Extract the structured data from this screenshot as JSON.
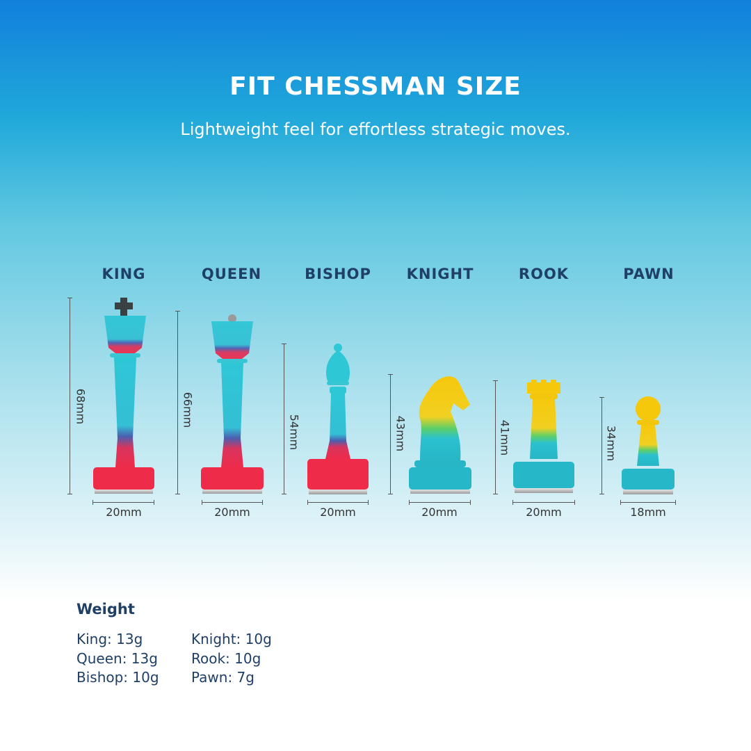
{
  "header": {
    "title": "FIT CHESSMAN SIZE",
    "subtitle": "Lightweight feel for effortless strategic moves."
  },
  "pieces": [
    {
      "name": "KING",
      "height": "68mm",
      "width": "20mm"
    },
    {
      "name": "QUEEN",
      "height": "66mm",
      "width": "20mm"
    },
    {
      "name": "BISHOP",
      "height": "54mm",
      "width": "20mm"
    },
    {
      "name": "KNIGHT",
      "height": "43mm",
      "width": "20mm"
    },
    {
      "name": "ROOK",
      "height": "41mm",
      "width": "20mm"
    },
    {
      "name": "PAWN",
      "height": "34mm",
      "width": "18mm"
    }
  ],
  "weight": {
    "title": "Weight",
    "col1": [
      "King: 13g",
      "Queen: 13g",
      "Bishop: 10g"
    ],
    "col2": [
      "Knight: 10g",
      "Rook: 10g",
      "Pawn: 7g"
    ]
  },
  "colors": {
    "accent_text": "#1f3f66",
    "teal": "#2cc3d3",
    "red": "#e8304f",
    "yellow": "#f4c30c"
  }
}
